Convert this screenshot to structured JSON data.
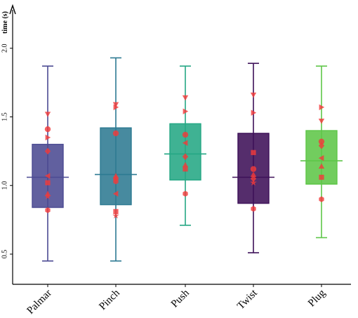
{
  "chart_data": {
    "type": "box",
    "ylabel": "time (s)",
    "xlabel": "",
    "ylim": [
      0.28,
      2.28
    ],
    "yticks": [
      0.5,
      1.0,
      1.5,
      2.0
    ],
    "ytick_labels": [
      "0.5",
      "1.0",
      "1.5",
      "2.0"
    ],
    "grid": false,
    "legend": "none",
    "categories": [
      "Palmar",
      "Pinch",
      "Push",
      "Twist",
      "Plug"
    ],
    "boxes": [
      {
        "category": "Palmar",
        "color": "#4b4a92",
        "whisker_low": 0.45,
        "q1": 0.84,
        "median": 1.06,
        "q3": 1.3,
        "whisker_high": 1.87,
        "points": [
          {
            "shape": "triangle-down",
            "value": 1.52
          },
          {
            "shape": "circle",
            "value": 1.41
          },
          {
            "shape": "triangle-right",
            "value": 1.35
          },
          {
            "shape": "diamond",
            "value": 1.25
          },
          {
            "shape": "triangle-left",
            "value": 1.07
          },
          {
            "shape": "square",
            "value": 1.02
          },
          {
            "shape": "triangle-up",
            "value": 0.94
          },
          {
            "shape": "star",
            "value": 0.92
          },
          {
            "shape": "hexagon",
            "value": 0.82
          }
        ]
      },
      {
        "category": "Pinch",
        "color": "#2d7a92",
        "whisker_low": 0.45,
        "q1": 0.86,
        "median": 1.08,
        "q3": 1.42,
        "whisker_high": 1.93,
        "points": [
          {
            "shape": "triangle-down",
            "value": 1.59
          },
          {
            "shape": "triangle-right",
            "value": 1.57
          },
          {
            "shape": "circle",
            "value": 1.38
          },
          {
            "shape": "triangle-up",
            "value": 1.07
          },
          {
            "shape": "diamond",
            "value": 1.05
          },
          {
            "shape": "hexagon",
            "value": 1.03
          },
          {
            "shape": "triangle-left",
            "value": 0.94
          },
          {
            "shape": "square",
            "value": 0.81
          },
          {
            "shape": "star",
            "value": 0.78
          }
        ]
      },
      {
        "category": "Push",
        "color": "#24a784",
        "whisker_low": 0.71,
        "q1": 1.04,
        "median": 1.23,
        "q3": 1.45,
        "whisker_high": 1.87,
        "points": [
          {
            "shape": "triangle-down",
            "value": 1.64
          },
          {
            "shape": "triangle-right",
            "value": 1.54
          },
          {
            "shape": "circle",
            "value": 1.37
          },
          {
            "shape": "triangle-left",
            "value": 1.31
          },
          {
            "shape": "diamond",
            "value": 1.21
          },
          {
            "shape": "triangle-up",
            "value": 1.15
          },
          {
            "shape": "square",
            "value": 1.12
          },
          {
            "shape": "hexagon",
            "value": 0.94
          }
        ]
      },
      {
        "category": "Twist",
        "color": "#3d1058",
        "whisker_low": 0.51,
        "q1": 0.87,
        "median": 1.06,
        "q3": 1.38,
        "whisker_high": 1.89,
        "points": [
          {
            "shape": "triangle-down",
            "value": 1.66
          },
          {
            "shape": "triangle-right",
            "value": 1.53
          },
          {
            "shape": "square",
            "value": 1.24
          },
          {
            "shape": "circle",
            "value": 1.12
          },
          {
            "shape": "triangle-up",
            "value": 1.08
          },
          {
            "shape": "diamond",
            "value": 1.05
          },
          {
            "shape": "star",
            "value": 1.02
          },
          {
            "shape": "hexagon",
            "value": 0.83
          }
        ]
      },
      {
        "category": "Plug",
        "color": "#5ec648",
        "whisker_low": 0.62,
        "q1": 1.01,
        "median": 1.18,
        "q3": 1.4,
        "whisker_high": 1.87,
        "points": [
          {
            "shape": "triangle-right",
            "value": 1.57
          },
          {
            "shape": "triangle-down",
            "value": 1.47
          },
          {
            "shape": "circle",
            "value": 1.32
          },
          {
            "shape": "diamond",
            "value": 1.29
          },
          {
            "shape": "triangle-left",
            "value": 1.2
          },
          {
            "shape": "triangle-up",
            "value": 1.14
          },
          {
            "shape": "square",
            "value": 1.06
          },
          {
            "shape": "hexagon",
            "value": 0.9
          }
        ]
      }
    ],
    "point_color": "#f23a3a"
  }
}
